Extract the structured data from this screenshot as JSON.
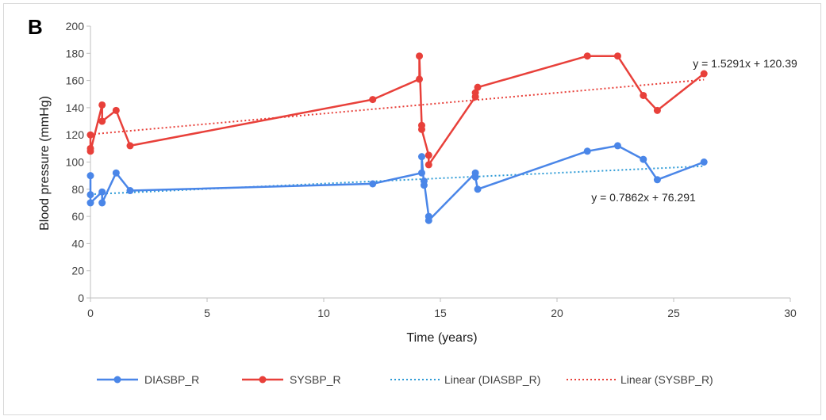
{
  "panel_label": "B",
  "chart_data": {
    "type": "line",
    "xlabel": "Time (years)",
    "ylabel": "Blood pressure (mmHg)",
    "xlim": [
      0,
      30
    ],
    "ylim": [
      0,
      200
    ],
    "x_ticks": [
      0,
      5,
      10,
      15,
      20,
      25,
      30
    ],
    "y_ticks": [
      0,
      20,
      40,
      60,
      80,
      100,
      120,
      140,
      160,
      180,
      200
    ],
    "grid": false,
    "legend_position": "bottom",
    "series": [
      {
        "name": "DIASBP_R",
        "color": "#4a86e8",
        "style": "solid-markers",
        "points": [
          [
            0,
            90
          ],
          [
            0,
            76
          ],
          [
            0,
            70
          ],
          [
            0.5,
            78
          ],
          [
            0.5,
            70
          ],
          [
            1.1,
            92
          ],
          [
            1.7,
            79
          ],
          [
            12.1,
            84
          ],
          [
            14.2,
            92
          ],
          [
            14.2,
            104
          ],
          [
            14.3,
            83
          ],
          [
            14.3,
            86
          ],
          [
            14.5,
            60
          ],
          [
            14.5,
            57
          ],
          [
            16.5,
            92
          ],
          [
            16.5,
            89
          ],
          [
            16.6,
            80
          ],
          [
            21.3,
            108
          ],
          [
            22.6,
            112
          ],
          [
            23.7,
            102
          ],
          [
            24.3,
            87
          ],
          [
            26.3,
            100
          ]
        ]
      },
      {
        "name": "SYSBP_R",
        "color": "#e8403a",
        "style": "solid-markers",
        "points": [
          [
            0,
            120
          ],
          [
            0,
            110
          ],
          [
            0,
            108
          ],
          [
            0.5,
            142
          ],
          [
            0.5,
            130
          ],
          [
            1.1,
            138
          ],
          [
            1.7,
            112
          ],
          [
            12.1,
            146
          ],
          [
            14.1,
            161
          ],
          [
            14.1,
            178
          ],
          [
            14.2,
            127
          ],
          [
            14.2,
            124
          ],
          [
            14.5,
            105
          ],
          [
            14.5,
            98
          ],
          [
            16.5,
            148
          ],
          [
            16.5,
            151
          ],
          [
            16.6,
            155
          ],
          [
            21.3,
            178
          ],
          [
            22.6,
            178
          ],
          [
            23.7,
            149
          ],
          [
            24.3,
            138
          ],
          [
            26.3,
            165
          ]
        ]
      },
      {
        "name": "Linear (DIASBP_R)",
        "color": "#2e9bd6",
        "style": "dotted",
        "trend": {
          "slope": 0.7862,
          "intercept": 76.291,
          "x_range": [
            0,
            26.3
          ]
        },
        "equation": "y = 0.7862x + 76.291"
      },
      {
        "name": "Linear (SYSBP_R)",
        "color": "#e8403a",
        "style": "dotted",
        "trend": {
          "slope": 1.5291,
          "intercept": 120.39,
          "x_range": [
            0,
            26.3
          ]
        },
        "equation": "y = 1.5291x + 120.39"
      }
    ]
  }
}
